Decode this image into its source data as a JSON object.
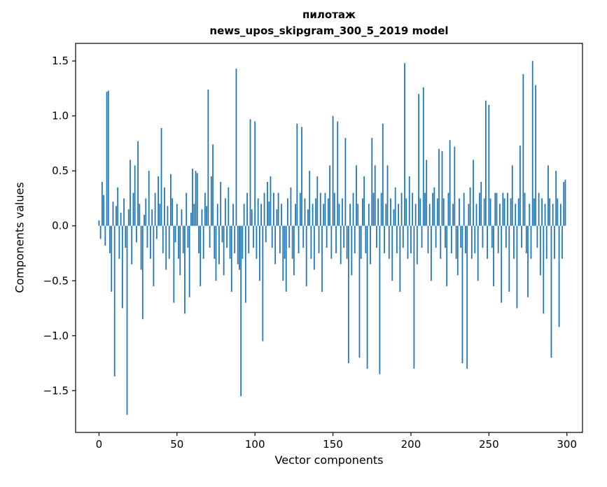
{
  "figure": {
    "title_line1": "пилотаж",
    "title_line2": "news_upos_skipgram_300_5_2019 model",
    "xlabel": "Vector components",
    "ylabel": "Components values"
  },
  "chart_data": {
    "type": "bar",
    "title": "пилотаж",
    "subtitle": "news_upos_skipgram_300_5_2019 model",
    "xlabel": "Vector components",
    "ylabel": "Components values",
    "legend": "none",
    "grid": false,
    "bar_color": "#1f77b4",
    "xlim": [
      -15,
      310
    ],
    "ylim": [
      -1.88,
      1.66
    ],
    "x_start": 0,
    "x_step": 1,
    "xticks": [
      {
        "value": 0,
        "label": "0"
      },
      {
        "value": 50,
        "label": "50"
      },
      {
        "value": 100,
        "label": "100"
      },
      {
        "value": 150,
        "label": "150"
      },
      {
        "value": 200,
        "label": "200"
      },
      {
        "value": 250,
        "label": "250"
      },
      {
        "value": 300,
        "label": "300"
      }
    ],
    "yticks": [
      {
        "value": -1.5,
        "label": "−1.5"
      },
      {
        "value": -1.0,
        "label": "−1.0"
      },
      {
        "value": -0.5,
        "label": "−0.5"
      },
      {
        "value": 0.0,
        "label": "0.0"
      },
      {
        "value": 0.5,
        "label": "0.5"
      },
      {
        "value": 1.0,
        "label": "1.0"
      },
      {
        "value": 1.5,
        "label": "1.5"
      }
    ],
    "values": [
      0.05,
      -0.12,
      0.4,
      0.28,
      -0.18,
      1.22,
      1.23,
      -0.25,
      -0.6,
      0.22,
      -1.37,
      0.18,
      0.35,
      -0.3,
      0.12,
      -0.75,
      0.25,
      -0.2,
      -1.72,
      0.15,
      0.6,
      -0.35,
      0.3,
      0.55,
      -0.15,
      0.77,
      0.2,
      -0.4,
      -0.85,
      0.1,
      0.25,
      -0.2,
      0.5,
      -0.3,
      0.15,
      -0.55,
      0.3,
      -0.12,
      0.45,
      0.2,
      0.89,
      -0.25,
      0.35,
      -0.4,
      0.18,
      -0.3,
      0.47,
      0.25,
      -0.7,
      -0.15,
      0.2,
      -0.3,
      -0.45,
      0.15,
      -0.25,
      -0.8,
      0.3,
      -0.2,
      -0.65,
      0.12,
      0.52,
      0.2,
      0.5,
      0.48,
      -0.25,
      -0.55,
      0.15,
      -0.3,
      0.3,
      0.18,
      1.24,
      -0.2,
      0.45,
      0.74,
      -0.3,
      -0.5,
      0.2,
      -0.35,
      0.4,
      -0.15,
      -0.45,
      0.25,
      -0.2,
      0.35,
      -0.3,
      -0.6,
      0.2,
      -0.25,
      1.43,
      -0.35,
      -0.4,
      -1.55,
      -0.3,
      0.2,
      -0.7,
      0.3,
      -0.25,
      0.97,
      0.15,
      -0.2,
      0.95,
      -0.3,
      0.25,
      -0.5,
      0.2,
      -1.05,
      0.3,
      -0.15,
      0.4,
      0.22,
      0.45,
      -0.2,
      0.3,
      -0.35,
      0.15,
      0.3,
      -0.25,
      0.2,
      -0.5,
      -0.3,
      -0.6,
      0.25,
      -0.2,
      0.35,
      -0.3,
      -0.45,
      0.2,
      0.93,
      -0.25,
      0.3,
      0.9,
      -0.2,
      0.25,
      -0.55,
      0.15,
      0.5,
      -0.3,
      0.2,
      -0.4,
      0.25,
      0.45,
      -0.25,
      0.3,
      -0.6,
      0.2,
      0.3,
      -0.2,
      0.25,
      0.55,
      -0.3,
      1.0,
      0.3,
      -0.25,
      0.95,
      0.2,
      -0.35,
      0.25,
      -0.2,
      0.8,
      -0.3,
      -1.25,
      0.2,
      -0.45,
      0.3,
      -0.25,
      0.55,
      0.2,
      -1.2,
      -0.3,
      0.25,
      0.45,
      -0.25,
      -1.3,
      0.2,
      -0.35,
      0.8,
      0.3,
      0.55,
      -0.2,
      0.25,
      -1.35,
      0.3,
      0.93,
      -0.25,
      0.2,
      0.55,
      -0.3,
      0.25,
      -0.5,
      0.15,
      0.35,
      -0.25,
      0.2,
      -0.6,
      0.3,
      -0.2,
      1.48,
      0.25,
      -0.3,
      0.45,
      -0.25,
      0.3,
      -1.3,
      0.2,
      -0.35,
      1.2,
      0.25,
      -0.2,
      1.26,
      0.3,
      0.6,
      -0.25,
      0.2,
      -0.5,
      0.3,
      0.35,
      -0.2,
      0.25,
      0.7,
      -0.3,
      0.68,
      0.25,
      -0.2,
      -0.55,
      0.3,
      0.78,
      -0.25,
      0.2,
      0.72,
      -0.3,
      -0.45,
      0.25,
      -0.2,
      -1.25,
      0.3,
      -0.25,
      -1.3,
      0.2,
      0.35,
      -0.3,
      0.6,
      -0.25,
      0.2,
      -0.5,
      0.3,
      0.4,
      -0.2,
      0.25,
      1.14,
      -0.3,
      1.1,
      0.25,
      -0.2,
      -0.55,
      0.3,
      0.3,
      -0.25,
      0.2,
      -0.7,
      0.3,
      0.25,
      -0.2,
      0.3,
      -0.6,
      0.25,
      0.55,
      -0.3,
      0.2,
      -0.75,
      0.25,
      0.73,
      -0.2,
      1.38,
      0.3,
      -0.25,
      -0.65,
      0.2,
      -0.3,
      1.5,
      0.25,
      1.28,
      -0.2,
      0.3,
      -0.45,
      0.25,
      -0.8,
      0.2,
      -0.3,
      0.55,
      0.25,
      -1.2,
      0.2,
      -0.3,
      0.5,
      0.25,
      -0.92,
      0.2,
      -0.3,
      0.4,
      0.42
    ]
  }
}
